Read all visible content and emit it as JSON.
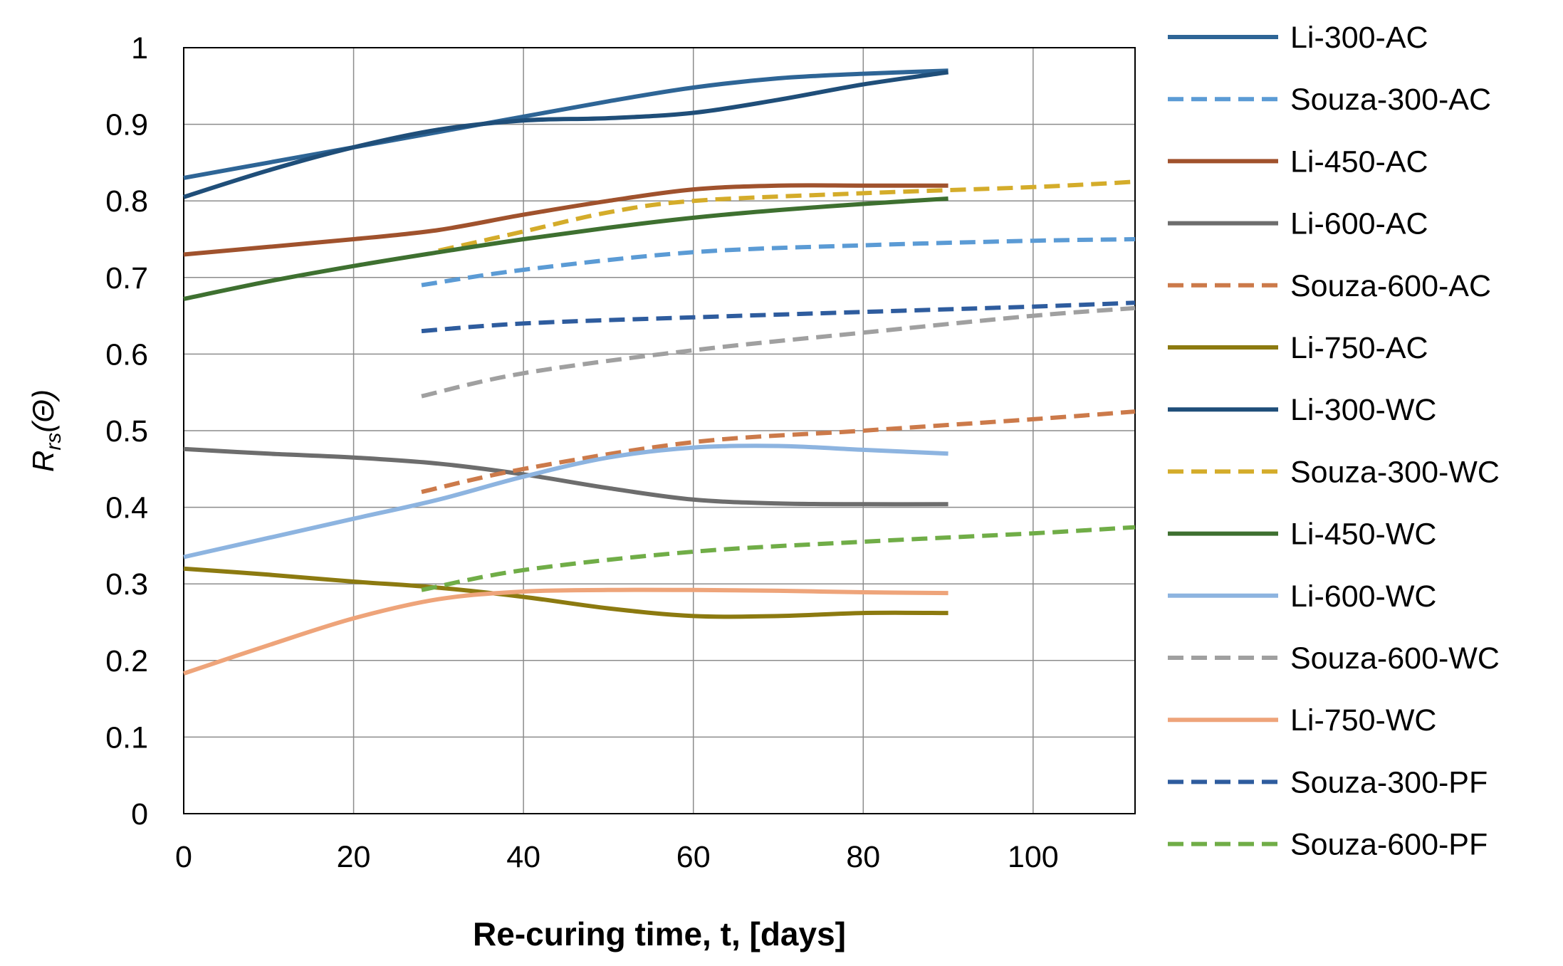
{
  "chart_data": {
    "type": "line",
    "xlabel": "Re-curing time, t, [days]",
    "ylabel_main": "R",
    "ylabel_sub": "rs",
    "ylabel_arg": "(Θ)",
    "xlim": [
      0,
      112
    ],
    "ylim": [
      0,
      1
    ],
    "xticks": [
      "0",
      "20",
      "40",
      "60",
      "80",
      "100"
    ],
    "yticks": [
      "0",
      "0.1",
      "0.2",
      "0.3",
      "0.4",
      "0.5",
      "0.6",
      "0.7",
      "0.8",
      "0.9",
      "1"
    ],
    "grid": true,
    "legend_position": "right",
    "series": [
      {
        "name": "Li-300-AC",
        "color": "#2e6596",
        "dash": false,
        "x": [
          0,
          10,
          20,
          30,
          40,
          50,
          60,
          70,
          80,
          90
        ],
        "y": [
          0.83,
          0.85,
          0.87,
          0.89,
          0.91,
          0.93,
          0.948,
          0.96,
          0.966,
          0.97
        ]
      },
      {
        "name": "Souza-300-AC",
        "color": "#5b9bd5",
        "dash": true,
        "x": [
          28,
          40,
          60,
          80,
          100,
          112
        ],
        "y": [
          0.69,
          0.71,
          0.733,
          0.742,
          0.748,
          0.75
        ]
      },
      {
        "name": "Li-450-AC",
        "color": "#a0522d",
        "dash": false,
        "x": [
          0,
          10,
          20,
          30,
          40,
          50,
          60,
          70,
          80,
          90
        ],
        "y": [
          0.73,
          0.74,
          0.75,
          0.762,
          0.782,
          0.8,
          0.815,
          0.82,
          0.82,
          0.82
        ]
      },
      {
        "name": "Li-600-AC",
        "color": "#6d6d6d",
        "dash": false,
        "x": [
          0,
          10,
          20,
          30,
          40,
          50,
          60,
          70,
          80,
          90
        ],
        "y": [
          0.476,
          0.47,
          0.465,
          0.457,
          0.443,
          0.425,
          0.41,
          0.405,
          0.404,
          0.404
        ]
      },
      {
        "name": "Souza-600-AC",
        "color": "#cc7a4a",
        "dash": true,
        "x": [
          28,
          40,
          60,
          80,
          100,
          112
        ],
        "y": [
          0.42,
          0.45,
          0.485,
          0.5,
          0.515,
          0.525
        ]
      },
      {
        "name": "Li-750-AC",
        "color": "#8c7a10",
        "dash": false,
        "x": [
          0,
          10,
          20,
          30,
          40,
          50,
          60,
          70,
          80,
          90
        ],
        "y": [
          0.32,
          0.312,
          0.303,
          0.295,
          0.283,
          0.268,
          0.258,
          0.258,
          0.262,
          0.262
        ]
      },
      {
        "name": "Li-300-WC",
        "color": "#1f4e79",
        "dash": false,
        "x": [
          0,
          10,
          20,
          30,
          40,
          50,
          60,
          70,
          80,
          90
        ],
        "y": [
          0.805,
          0.84,
          0.87,
          0.893,
          0.905,
          0.908,
          0.915,
          0.932,
          0.952,
          0.968
        ]
      },
      {
        "name": "Souza-300-WC",
        "color": "#d4ac2a",
        "dash": true,
        "x": [
          30,
          40,
          50,
          60,
          80,
          100,
          112
        ],
        "y": [
          0.735,
          0.76,
          0.785,
          0.8,
          0.81,
          0.818,
          0.825
        ]
      },
      {
        "name": "Li-450-WC",
        "color": "#3e7030",
        "dash": false,
        "x": [
          0,
          10,
          20,
          30,
          40,
          50,
          60,
          70,
          80,
          90
        ],
        "y": [
          0.672,
          0.695,
          0.715,
          0.733,
          0.75,
          0.765,
          0.778,
          0.788,
          0.796,
          0.803
        ]
      },
      {
        "name": "Li-600-WC",
        "color": "#8db4e0",
        "dash": false,
        "x": [
          0,
          10,
          20,
          30,
          40,
          50,
          60,
          70,
          80,
          90
        ],
        "y": [
          0.335,
          0.36,
          0.385,
          0.41,
          0.44,
          0.465,
          0.478,
          0.48,
          0.475,
          0.47
        ]
      },
      {
        "name": "Souza-600-WC",
        "color": "#a0a0a0",
        "dash": true,
        "x": [
          28,
          40,
          60,
          80,
          100,
          112
        ],
        "y": [
          0.545,
          0.575,
          0.605,
          0.628,
          0.65,
          0.66
        ]
      },
      {
        "name": "Li-750-WC",
        "color": "#eea47a",
        "dash": false,
        "x": [
          0,
          10,
          20,
          30,
          40,
          50,
          60,
          70,
          80,
          90
        ],
        "y": [
          0.183,
          0.22,
          0.255,
          0.28,
          0.29,
          0.292,
          0.292,
          0.291,
          0.289,
          0.288
        ]
      },
      {
        "name": "Souza-300-PF",
        "color": "#2e5c9e",
        "dash": true,
        "x": [
          28,
          40,
          60,
          80,
          100,
          112
        ],
        "y": [
          0.63,
          0.64,
          0.648,
          0.655,
          0.662,
          0.667
        ]
      },
      {
        "name": "Souza-600-PF",
        "color": "#70ad47",
        "dash": true,
        "x": [
          28,
          40,
          60,
          80,
          100,
          112
        ],
        "y": [
          0.292,
          0.318,
          0.342,
          0.355,
          0.366,
          0.374
        ]
      }
    ]
  }
}
